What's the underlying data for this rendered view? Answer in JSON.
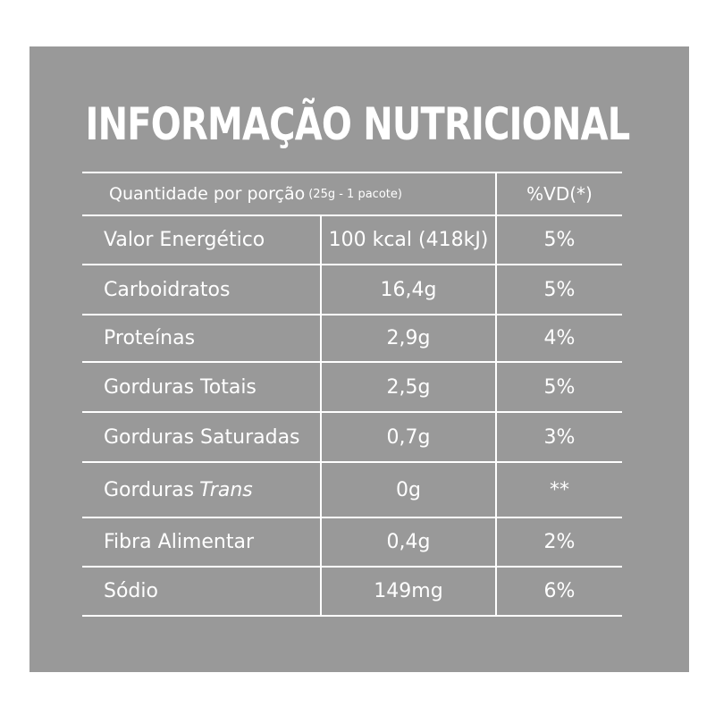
{
  "title": "INFORMAÇÃO NUTRICIONAL",
  "colors": {
    "panel": "#999999",
    "text": "#ffffff",
    "background": "#ffffff"
  },
  "header": {
    "portion_label": "Quantidade por porção",
    "portion_detail": "(25g - 1 pacote)",
    "vd_label": "%VD(*)"
  },
  "rows": [
    {
      "name": "Valor Energético",
      "amount": "100 kcal (418kJ)",
      "vd": "5%"
    },
    {
      "name": "Carboidratos",
      "amount": "16,4g",
      "vd": "5%"
    },
    {
      "name": "Proteínas",
      "amount": "2,9g",
      "vd": "4%"
    },
    {
      "name": "Gorduras Totais",
      "amount": "2,5g",
      "vd": "5%"
    },
    {
      "name": "Gorduras Saturadas",
      "amount": "0,7g",
      "vd": "3%"
    },
    {
      "name_prefix": "Gorduras",
      "name_italic": "Trans",
      "amount": "0g",
      "vd": "**"
    },
    {
      "name": "Fibra Alimentar",
      "amount": "0,4g",
      "vd": "2%"
    },
    {
      "name": "Sódio",
      "amount": "149mg",
      "vd": "6%"
    }
  ]
}
